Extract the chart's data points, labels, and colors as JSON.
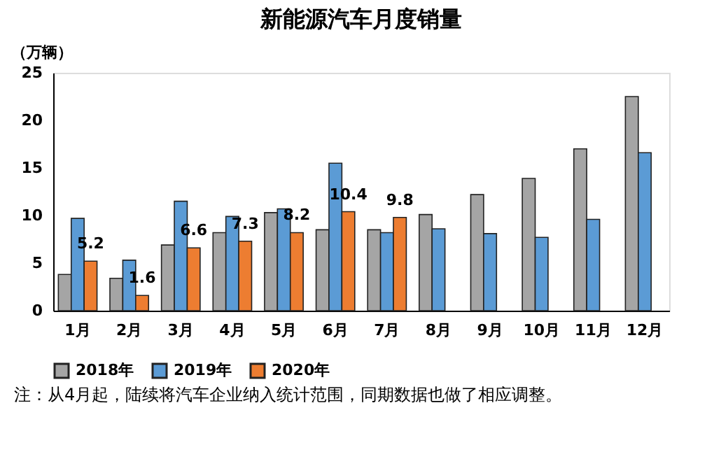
{
  "chart_data": {
    "type": "bar",
    "title": "新能源汽车月度销量",
    "ylabel": "（万辆）",
    "categories": [
      "1月",
      "2月",
      "3月",
      "4月",
      "5月",
      "6月",
      "7月",
      "8月",
      "9月",
      "10月",
      "11月",
      "12月"
    ],
    "series": [
      {
        "name": "2018年",
        "color": "#a5a5a5",
        "values": [
          3.8,
          3.4,
          6.9,
          8.2,
          10.3,
          8.5,
          8.5,
          10.1,
          12.2,
          13.9,
          17.0,
          22.5
        ]
      },
      {
        "name": "2019年",
        "color": "#5b9bd5",
        "values": [
          9.7,
          5.3,
          11.5,
          9.9,
          10.7,
          15.5,
          8.2,
          8.6,
          8.1,
          7.7,
          9.6,
          16.6
        ]
      },
      {
        "name": "2020年",
        "color": "#ed7d31",
        "values": [
          5.2,
          1.6,
          6.6,
          7.3,
          8.2,
          10.4,
          9.8,
          null,
          null,
          null,
          null,
          null
        ],
        "value_labels": [
          "5.2",
          "1.6",
          "6.6",
          "7.3",
          "8.2",
          "10.4",
          "9.8",
          null,
          null,
          null,
          null,
          null
        ]
      }
    ],
    "ylim": [
      0,
      25
    ],
    "yticks": [
      0,
      5,
      10,
      15,
      20,
      25
    ],
    "grid": false,
    "legend": "bottom",
    "annotations": [
      "注：从4月起，陆续将汽车企业纳入统计范围，同期数据也做了相应调整。"
    ]
  }
}
